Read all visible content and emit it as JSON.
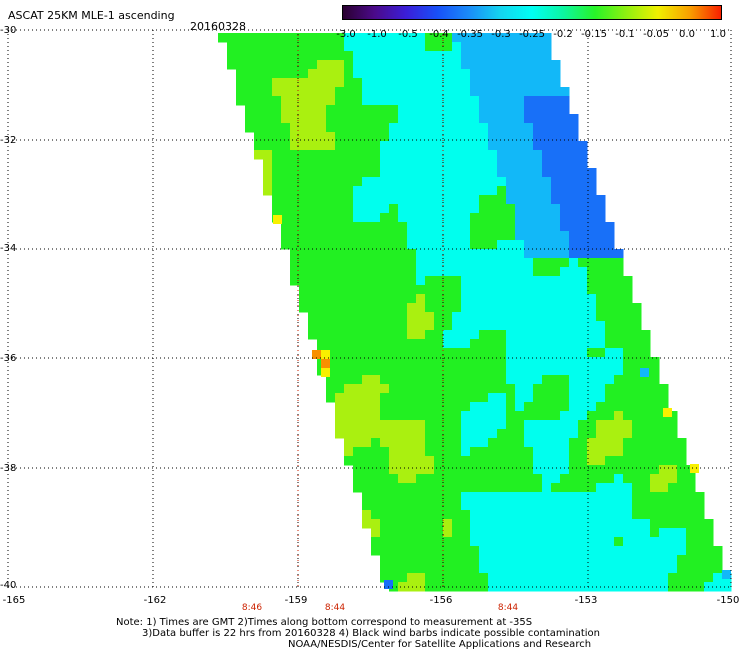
{
  "header": {
    "title": "ASCAT 25KM MLE-1 ascending",
    "date": "20160328"
  },
  "colorbar": {
    "ticks": [
      "-3.0",
      "-1.0",
      "-0.5",
      "-0.4",
      "-0.35",
      "-0.3",
      "-0.25",
      "-0.2",
      "-0.15",
      "-0.1",
      "-0.05",
      "0.0",
      "1.0"
    ],
    "colors": [
      "#2a0030",
      "#4b0a8a",
      "#3b1ed8",
      "#1850f8",
      "#1a8cf8",
      "#14d4f0",
      "#00fff4",
      "#0cf6a0",
      "#28f428",
      "#90f010",
      "#f0f000",
      "#f8a000",
      "#f82000"
    ]
  },
  "axes": {
    "y_ticks": [
      "-30",
      "-32",
      "-34",
      "-36",
      "-38",
      "-40"
    ],
    "x_ticks": [
      "-165",
      "-162",
      "-159",
      "-156",
      "-153",
      "-150"
    ],
    "time_labels": [
      "8:46",
      "8:44",
      "8:44"
    ]
  },
  "notes": {
    "line1": "Note: 1) Times are GMT 2)Times along bottom correspond to measurement at -35S",
    "line2": "3)Data buffer is 22 hrs from 20160328 4) Black wind barbs indicate possible contamination",
    "line3": "NOAA/NESDIS/Center for Satellite Applications and Research"
  },
  "map": {
    "palette": {
      "cyan": "#00ffee",
      "green": "#22f022",
      "yellowgreen": "#aaf010",
      "lightblue": "#12b8f8",
      "blue": "#1870f8",
      "yellow": "#f8f000",
      "orange": "#f89000"
    },
    "grid_color": "#000000"
  }
}
